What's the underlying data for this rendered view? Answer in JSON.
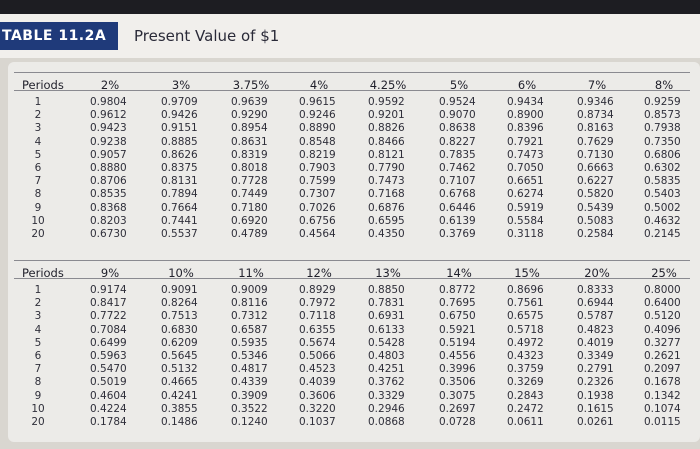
{
  "header": {
    "label": "TABLE 11.2A",
    "title": "Present Value of $1"
  },
  "tables": [
    {
      "period_header": "Periods",
      "columns": [
        "2%",
        "3%",
        "3.75%",
        "4%",
        "4.25%",
        "5%",
        "6%",
        "7%",
        "8%"
      ],
      "periods": [
        "1",
        "2",
        "3",
        "4",
        "5",
        "6",
        "7",
        "8",
        "9",
        "10",
        "20"
      ],
      "rows": [
        [
          "0.9804",
          "0.9709",
          "0.9639",
          "0.9615",
          "0.9592",
          "0.9524",
          "0.9434",
          "0.9346",
          "0.9259"
        ],
        [
          "0.9612",
          "0.9426",
          "0.9290",
          "0.9246",
          "0.9201",
          "0.9070",
          "0.8900",
          "0.8734",
          "0.8573"
        ],
        [
          "0.9423",
          "0.9151",
          "0.8954",
          "0.8890",
          "0.8826",
          "0.8638",
          "0.8396",
          "0.8163",
          "0.7938"
        ],
        [
          "0.9238",
          "0.8885",
          "0.8631",
          "0.8548",
          "0.8466",
          "0.8227",
          "0.7921",
          "0.7629",
          "0.7350"
        ],
        [
          "0.9057",
          "0.8626",
          "0.8319",
          "0.8219",
          "0.8121",
          "0.7835",
          "0.7473",
          "0.7130",
          "0.6806"
        ],
        [
          "0.8880",
          "0.8375",
          "0.8018",
          "0.7903",
          "0.7790",
          "0.7462",
          "0.7050",
          "0.6663",
          "0.6302"
        ],
        [
          "0.8706",
          "0.8131",
          "0.7728",
          "0.7599",
          "0.7473",
          "0.7107",
          "0.6651",
          "0.6227",
          "0.5835"
        ],
        [
          "0.8535",
          "0.7894",
          "0.7449",
          "0.7307",
          "0.7168",
          "0.6768",
          "0.6274",
          "0.5820",
          "0.5403"
        ],
        [
          "0.8368",
          "0.7664",
          "0.7180",
          "0.7026",
          "0.6876",
          "0.6446",
          "0.5919",
          "0.5439",
          "0.5002"
        ],
        [
          "0.8203",
          "0.7441",
          "0.6920",
          "0.6756",
          "0.6595",
          "0.6139",
          "0.5584",
          "0.5083",
          "0.4632"
        ],
        [
          "0.6730",
          "0.5537",
          "0.4789",
          "0.4564",
          "0.4350",
          "0.3769",
          "0.3118",
          "0.2584",
          "0.2145"
        ]
      ]
    },
    {
      "period_header": "Periods",
      "columns": [
        "9%",
        "10%",
        "11%",
        "12%",
        "13%",
        "14%",
        "15%",
        "20%",
        "25%"
      ],
      "periods": [
        "1",
        "2",
        "3",
        "4",
        "5",
        "6",
        "7",
        "8",
        "9",
        "10",
        "20"
      ],
      "rows": [
        [
          "0.9174",
          "0.9091",
          "0.9009",
          "0.8929",
          "0.8850",
          "0.8772",
          "0.8696",
          "0.8333",
          "0.8000"
        ],
        [
          "0.8417",
          "0.8264",
          "0.8116",
          "0.7972",
          "0.7831",
          "0.7695",
          "0.7561",
          "0.6944",
          "0.6400"
        ],
        [
          "0.7722",
          "0.7513",
          "0.7312",
          "0.7118",
          "0.6931",
          "0.6750",
          "0.6575",
          "0.5787",
          "0.5120"
        ],
        [
          "0.7084",
          "0.6830",
          "0.6587",
          "0.6355",
          "0.6133",
          "0.5921",
          "0.5718",
          "0.4823",
          "0.4096"
        ],
        [
          "0.6499",
          "0.6209",
          "0.5935",
          "0.5674",
          "0.5428",
          "0.5194",
          "0.4972",
          "0.4019",
          "0.3277"
        ],
        [
          "0.5963",
          "0.5645",
          "0.5346",
          "0.5066",
          "0.4803",
          "0.4556",
          "0.4323",
          "0.3349",
          "0.2621"
        ],
        [
          "0.5470",
          "0.5132",
          "0.4817",
          "0.4523",
          "0.4251",
          "0.3996",
          "0.3759",
          "0.2791",
          "0.2097"
        ],
        [
          "0.5019",
          "0.4665",
          "0.4339",
          "0.4039",
          "0.3762",
          "0.3506",
          "0.3269",
          "0.2326",
          "0.1678"
        ],
        [
          "0.4604",
          "0.4241",
          "0.3909",
          "0.3606",
          "0.3329",
          "0.3075",
          "0.2843",
          "0.1938",
          "0.1342"
        ],
        [
          "0.4224",
          "0.3855",
          "0.3522",
          "0.3220",
          "0.2946",
          "0.2697",
          "0.2472",
          "0.1615",
          "0.1074"
        ],
        [
          "0.1784",
          "0.1486",
          "0.1240",
          "0.1037",
          "0.0868",
          "0.0728",
          "0.0611",
          "0.0261",
          "0.0115"
        ]
      ]
    }
  ]
}
